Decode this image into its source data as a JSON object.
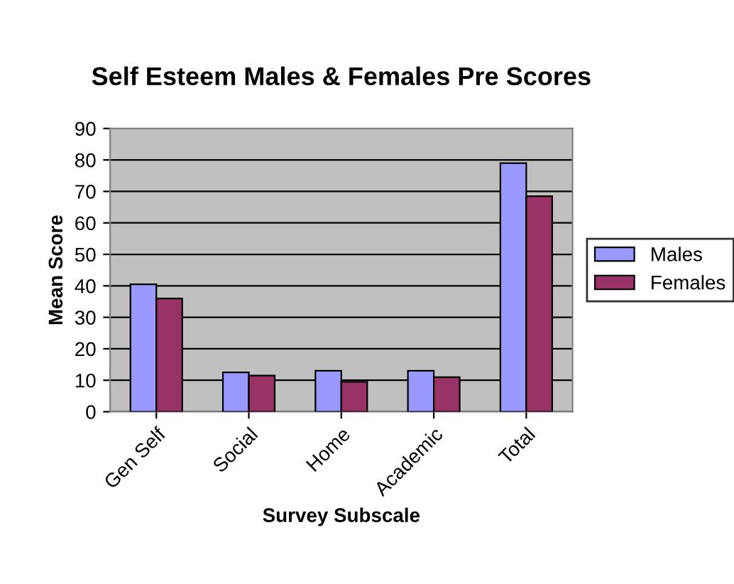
{
  "chart_data": {
    "type": "bar",
    "title": "Self Esteem Males & Females Pre Scores",
    "xlabel": "Survey Subscale",
    "ylabel": "Mean Score",
    "categories": [
      "Gen Self",
      "Social",
      "Home",
      "Academic",
      "Total"
    ],
    "series": [
      {
        "name": "Males",
        "color": "#9999ff",
        "values": [
          40.5,
          12.5,
          13,
          13,
          79
        ]
      },
      {
        "name": "Females",
        "color": "#993366",
        "values": [
          36,
          11.5,
          9.5,
          11,
          68.5
        ]
      }
    ],
    "ylim": [
      0,
      90
    ],
    "yticks": [
      0,
      10,
      20,
      30,
      40,
      50,
      60,
      70,
      80,
      90
    ],
    "grid": "y",
    "legend": "right"
  }
}
